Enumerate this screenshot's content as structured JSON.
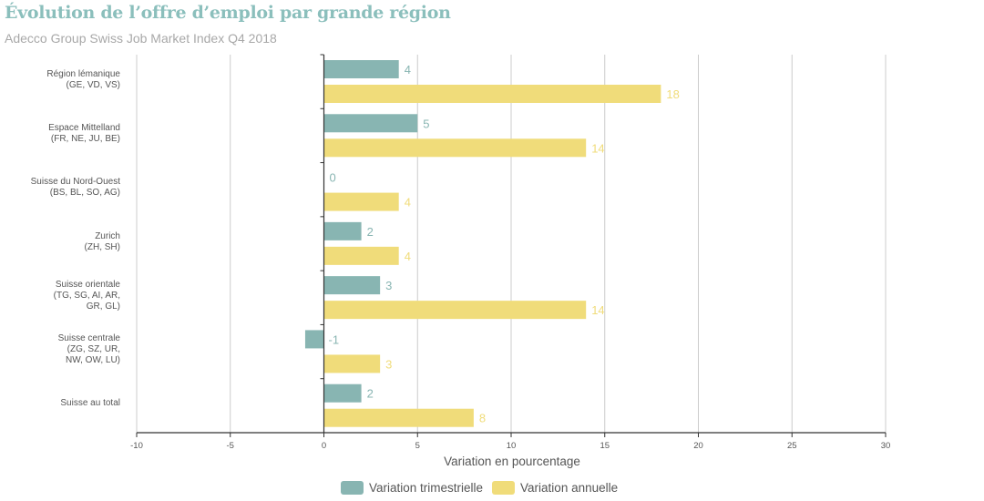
{
  "header": {
    "title": "Évolution de l’offre d’emploi par grande région",
    "subtitle": "Adecco Group Swiss Job Market Index Q4 2018"
  },
  "colors": {
    "quarterly": "#88b5b2",
    "annual": "#f0dc7a",
    "title": "#8bbfbc",
    "grid": "#cccccc",
    "axis": "#333333"
  },
  "legend": {
    "quarterly_label": "Variation trimestrielle",
    "annual_label": "Variation annuelle"
  },
  "chart_data": {
    "type": "bar",
    "orientation": "horizontal",
    "title": "Évolution de l’offre d’emploi par grande région",
    "subtitle": "Adecco Group Swiss Job Market Index Q4 2018",
    "xlabel": "Variation en pourcentage",
    "ylabel": "",
    "xlim": [
      -10,
      30
    ],
    "xticks": [
      -10,
      -5,
      0,
      5,
      10,
      15,
      20,
      25,
      30
    ],
    "grid": true,
    "legend_position": "bottom",
    "categories": [
      "Région lémanique\n(GE, VD, VS)",
      "Espace Mittelland\n(FR, NE, JU, BE)",
      "Suisse du Nord-Ouest\n(BS, BL, SO, AG)",
      "Zurich\n(ZH, SH)",
      "Suisse orientale\n(TG, SG, AI, AR,\nGR, GL)",
      "Suisse centrale\n(ZG, SZ, UR,\nNW, OW, LU)",
      "Suisse au total"
    ],
    "series": [
      {
        "name": "Variation trimestrielle",
        "values": [
          4,
          5,
          0,
          2,
          3,
          -1,
          2
        ]
      },
      {
        "name": "Variation annuelle",
        "values": [
          18,
          14,
          4,
          4,
          14,
          3,
          8
        ]
      }
    ]
  }
}
